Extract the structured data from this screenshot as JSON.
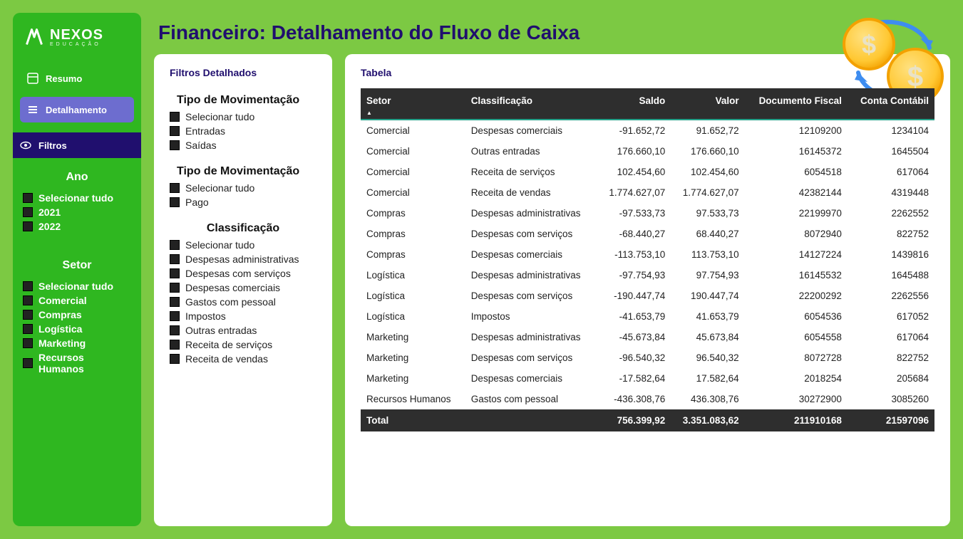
{
  "brand": {
    "name": "NEXOS",
    "sub": "EDUCAÇÃO"
  },
  "nav": {
    "resumo": "Resumo",
    "detalhamento": "Detalhamento",
    "filtros": "Filtros"
  },
  "sidebar": {
    "ano": {
      "title": "Ano",
      "items": [
        "Selecionar tudo",
        "2021",
        "2022"
      ]
    },
    "setor": {
      "title": "Setor",
      "items": [
        "Selecionar tudo",
        "Comercial",
        "Compras",
        "Logística",
        "Marketing",
        "Recursos Humanos"
      ]
    }
  },
  "page": {
    "title": "Financeiro: Detalhamento do Fluxo de Caixa"
  },
  "filters": {
    "title": "Filtros Detalhados",
    "mov1": {
      "heading": "Tipo de Movimentação",
      "items": [
        "Selecionar tudo",
        "Entradas",
        "Saídas"
      ]
    },
    "mov2": {
      "heading": "Tipo de Movimentação",
      "items": [
        "Selecionar tudo",
        "Pago"
      ]
    },
    "classif": {
      "heading": "Classificação",
      "items": [
        "Selecionar tudo",
        "Despesas administrativas",
        "Despesas com serviços",
        "Despesas comerciais",
        "Gastos com pessoal",
        "Impostos",
        "Outras entradas",
        "Receita de serviços",
        "Receita de vendas"
      ]
    }
  },
  "table": {
    "title": "Tabela",
    "columns": [
      {
        "label": "Setor",
        "align": "left",
        "sorted": true
      },
      {
        "label": "Classificação",
        "align": "left"
      },
      {
        "label": "Saldo",
        "align": "right"
      },
      {
        "label": "Valor",
        "align": "right"
      },
      {
        "label": "Documento Fiscal",
        "align": "right"
      },
      {
        "label": "Conta Contábil",
        "align": "right"
      }
    ],
    "rows": [
      [
        "Comercial",
        "Despesas comerciais",
        "-91.652,72",
        "91.652,72",
        "12109200",
        "1234104"
      ],
      [
        "Comercial",
        "Outras entradas",
        "176.660,10",
        "176.660,10",
        "16145372",
        "1645504"
      ],
      [
        "Comercial",
        "Receita de serviços",
        "102.454,60",
        "102.454,60",
        "6054518",
        "617064"
      ],
      [
        "Comercial",
        "Receita de vendas",
        "1.774.627,07",
        "1.774.627,07",
        "42382144",
        "4319448"
      ],
      [
        "Compras",
        "Despesas administrativas",
        "-97.533,73",
        "97.533,73",
        "22199970",
        "2262552"
      ],
      [
        "Compras",
        "Despesas com serviços",
        "-68.440,27",
        "68.440,27",
        "8072940",
        "822752"
      ],
      [
        "Compras",
        "Despesas comerciais",
        "-113.753,10",
        "113.753,10",
        "14127224",
        "1439816"
      ],
      [
        "Logística",
        "Despesas administrativas",
        "-97.754,93",
        "97.754,93",
        "16145532",
        "1645488"
      ],
      [
        "Logística",
        "Despesas com serviços",
        "-190.447,74",
        "190.447,74",
        "22200292",
        "2262556"
      ],
      [
        "Logística",
        "Impostos",
        "-41.653,79",
        "41.653,79",
        "6054536",
        "617052"
      ],
      [
        "Marketing",
        "Despesas administrativas",
        "-45.673,84",
        "45.673,84",
        "6054558",
        "617064"
      ],
      [
        "Marketing",
        "Despesas com serviços",
        "-96.540,32",
        "96.540,32",
        "8072728",
        "822752"
      ],
      [
        "Marketing",
        "Despesas comerciais",
        "-17.582,64",
        "17.582,64",
        "2018254",
        "205684"
      ],
      [
        "Recursos Humanos",
        "Gastos com pessoal",
        "-436.308,76",
        "436.308,76",
        "30272900",
        "3085260"
      ]
    ],
    "total": {
      "label": "Total",
      "values": [
        "756.399,92",
        "3.351.083,62",
        "211910168",
        "21597096"
      ]
    }
  },
  "colors": {
    "page_bg": "#7cc943",
    "sidebar_bg": "#2fb720",
    "primary_dark": "#200f6e",
    "nav_active": "#6d6dcf",
    "table_header": "#2e2e2e",
    "table_accent": "#23a088",
    "coin_fill": "#ffd23f",
    "coin_edge": "#f3a100",
    "arrow": "#3e8df0"
  }
}
